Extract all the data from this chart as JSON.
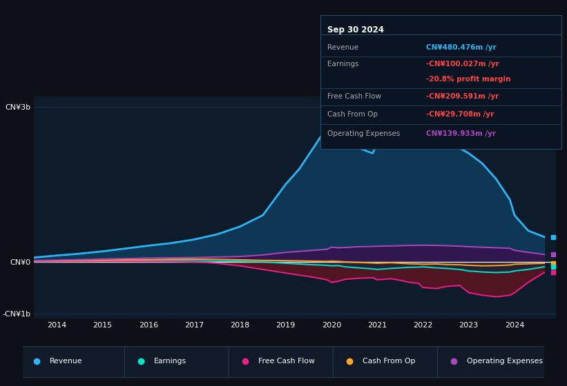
{
  "bg_color": "#0d1117",
  "plot_bg_color": "#0d1b2a",
  "grid_color": "#1e3a5f",
  "years_detail": [
    2013.5,
    2014,
    2014.5,
    2015,
    2015.5,
    2016,
    2016.5,
    2017,
    2017.5,
    2018,
    2018.5,
    2019,
    2019.3,
    2019.6,
    2019.9,
    2020.0,
    2020.15,
    2020.3,
    2020.6,
    2020.9,
    2021.0,
    2021.3,
    2021.5,
    2021.7,
    2021.9,
    2022.0,
    2022.3,
    2022.5,
    2022.8,
    2023.0,
    2023.3,
    2023.6,
    2023.9,
    2024.0,
    2024.3,
    2024.65
  ],
  "rev_detail": [
    80,
    120,
    155,
    200,
    255,
    310,
    360,
    430,
    530,
    680,
    900,
    1500,
    1800,
    2200,
    2600,
    2950,
    2850,
    2500,
    2200,
    2100,
    2300,
    2200,
    2350,
    2500,
    2550,
    2600,
    2450,
    2350,
    2200,
    2100,
    1900,
    1600,
    1200,
    900,
    600,
    480
  ],
  "earn_detail": [
    5,
    10,
    12,
    15,
    18,
    20,
    18,
    15,
    10,
    5,
    -5,
    -30,
    -45,
    -60,
    -70,
    -80,
    -75,
    -100,
    -120,
    -140,
    -150,
    -130,
    -120,
    -110,
    -105,
    -100,
    -120,
    -130,
    -150,
    -180,
    -200,
    -210,
    -200,
    -180,
    -150,
    -100
  ],
  "fcf_detail": [
    3,
    5,
    6,
    8,
    7,
    5,
    3,
    -5,
    -30,
    -80,
    -150,
    -220,
    -260,
    -300,
    -350,
    -400,
    -380,
    -340,
    -320,
    -310,
    -350,
    -330,
    -360,
    -400,
    -420,
    -500,
    -520,
    -480,
    -460,
    -600,
    -650,
    -680,
    -650,
    -600,
    -400,
    -210
  ],
  "cash_detail": [
    15,
    20,
    25,
    30,
    35,
    40,
    45,
    50,
    45,
    35,
    25,
    20,
    15,
    10,
    5,
    10,
    5,
    -5,
    -15,
    -25,
    -30,
    -20,
    -30,
    -40,
    -45,
    -50,
    -45,
    -55,
    -60,
    -70,
    -80,
    -75,
    -65,
    -50,
    -40,
    -30
  ],
  "opex_detail": [
    20,
    30,
    38,
    50,
    60,
    70,
    75,
    80,
    90,
    100,
    130,
    180,
    200,
    220,
    240,
    280,
    270,
    275,
    290,
    295,
    300,
    305,
    310,
    315,
    318,
    320,
    315,
    310,
    300,
    290,
    280,
    270,
    260,
    220,
    180,
    140
  ],
  "ylim": [
    -1100,
    3200
  ],
  "yticks": [
    -1000,
    0,
    3000
  ],
  "ytick_labels": [
    "-CN¥1b",
    "CN¥0",
    "CN¥3b"
  ],
  "revenue_color": "#29b6f6",
  "earnings_color": "#00e5cc",
  "free_cash_flow_color": "#e91e8c",
  "cash_from_op_color": "#ffa726",
  "operating_expenses_color": "#ab47bc",
  "revenue_fill_color": "#0d3d5c",
  "legend_items": [
    "Revenue",
    "Earnings",
    "Free Cash Flow",
    "Cash From Op",
    "Operating Expenses"
  ],
  "legend_colors": [
    "#29b6f6",
    "#00e5cc",
    "#e91e8c",
    "#ffa726",
    "#ab47bc"
  ],
  "info_box": {
    "date": "Sep 30 2024",
    "rows": [
      {
        "label": "Revenue",
        "value": "CN¥480.476m /yr",
        "value_color": "#29b6f6"
      },
      {
        "label": "Earnings",
        "value": "-CN¥100.027m /yr",
        "value_color": "#ff4444"
      },
      {
        "label": "",
        "value": "-20.8% profit margin",
        "value_color": "#ff4444"
      },
      {
        "label": "Free Cash Flow",
        "value": "-CN¥209.591m /yr",
        "value_color": "#ff4444"
      },
      {
        "label": "Cash From Op",
        "value": "-CN¥29.708m /yr",
        "value_color": "#ff4444"
      },
      {
        "label": "Operating Expenses",
        "value": "CN¥139.933m /yr",
        "value_color": "#ab47bc"
      }
    ]
  }
}
